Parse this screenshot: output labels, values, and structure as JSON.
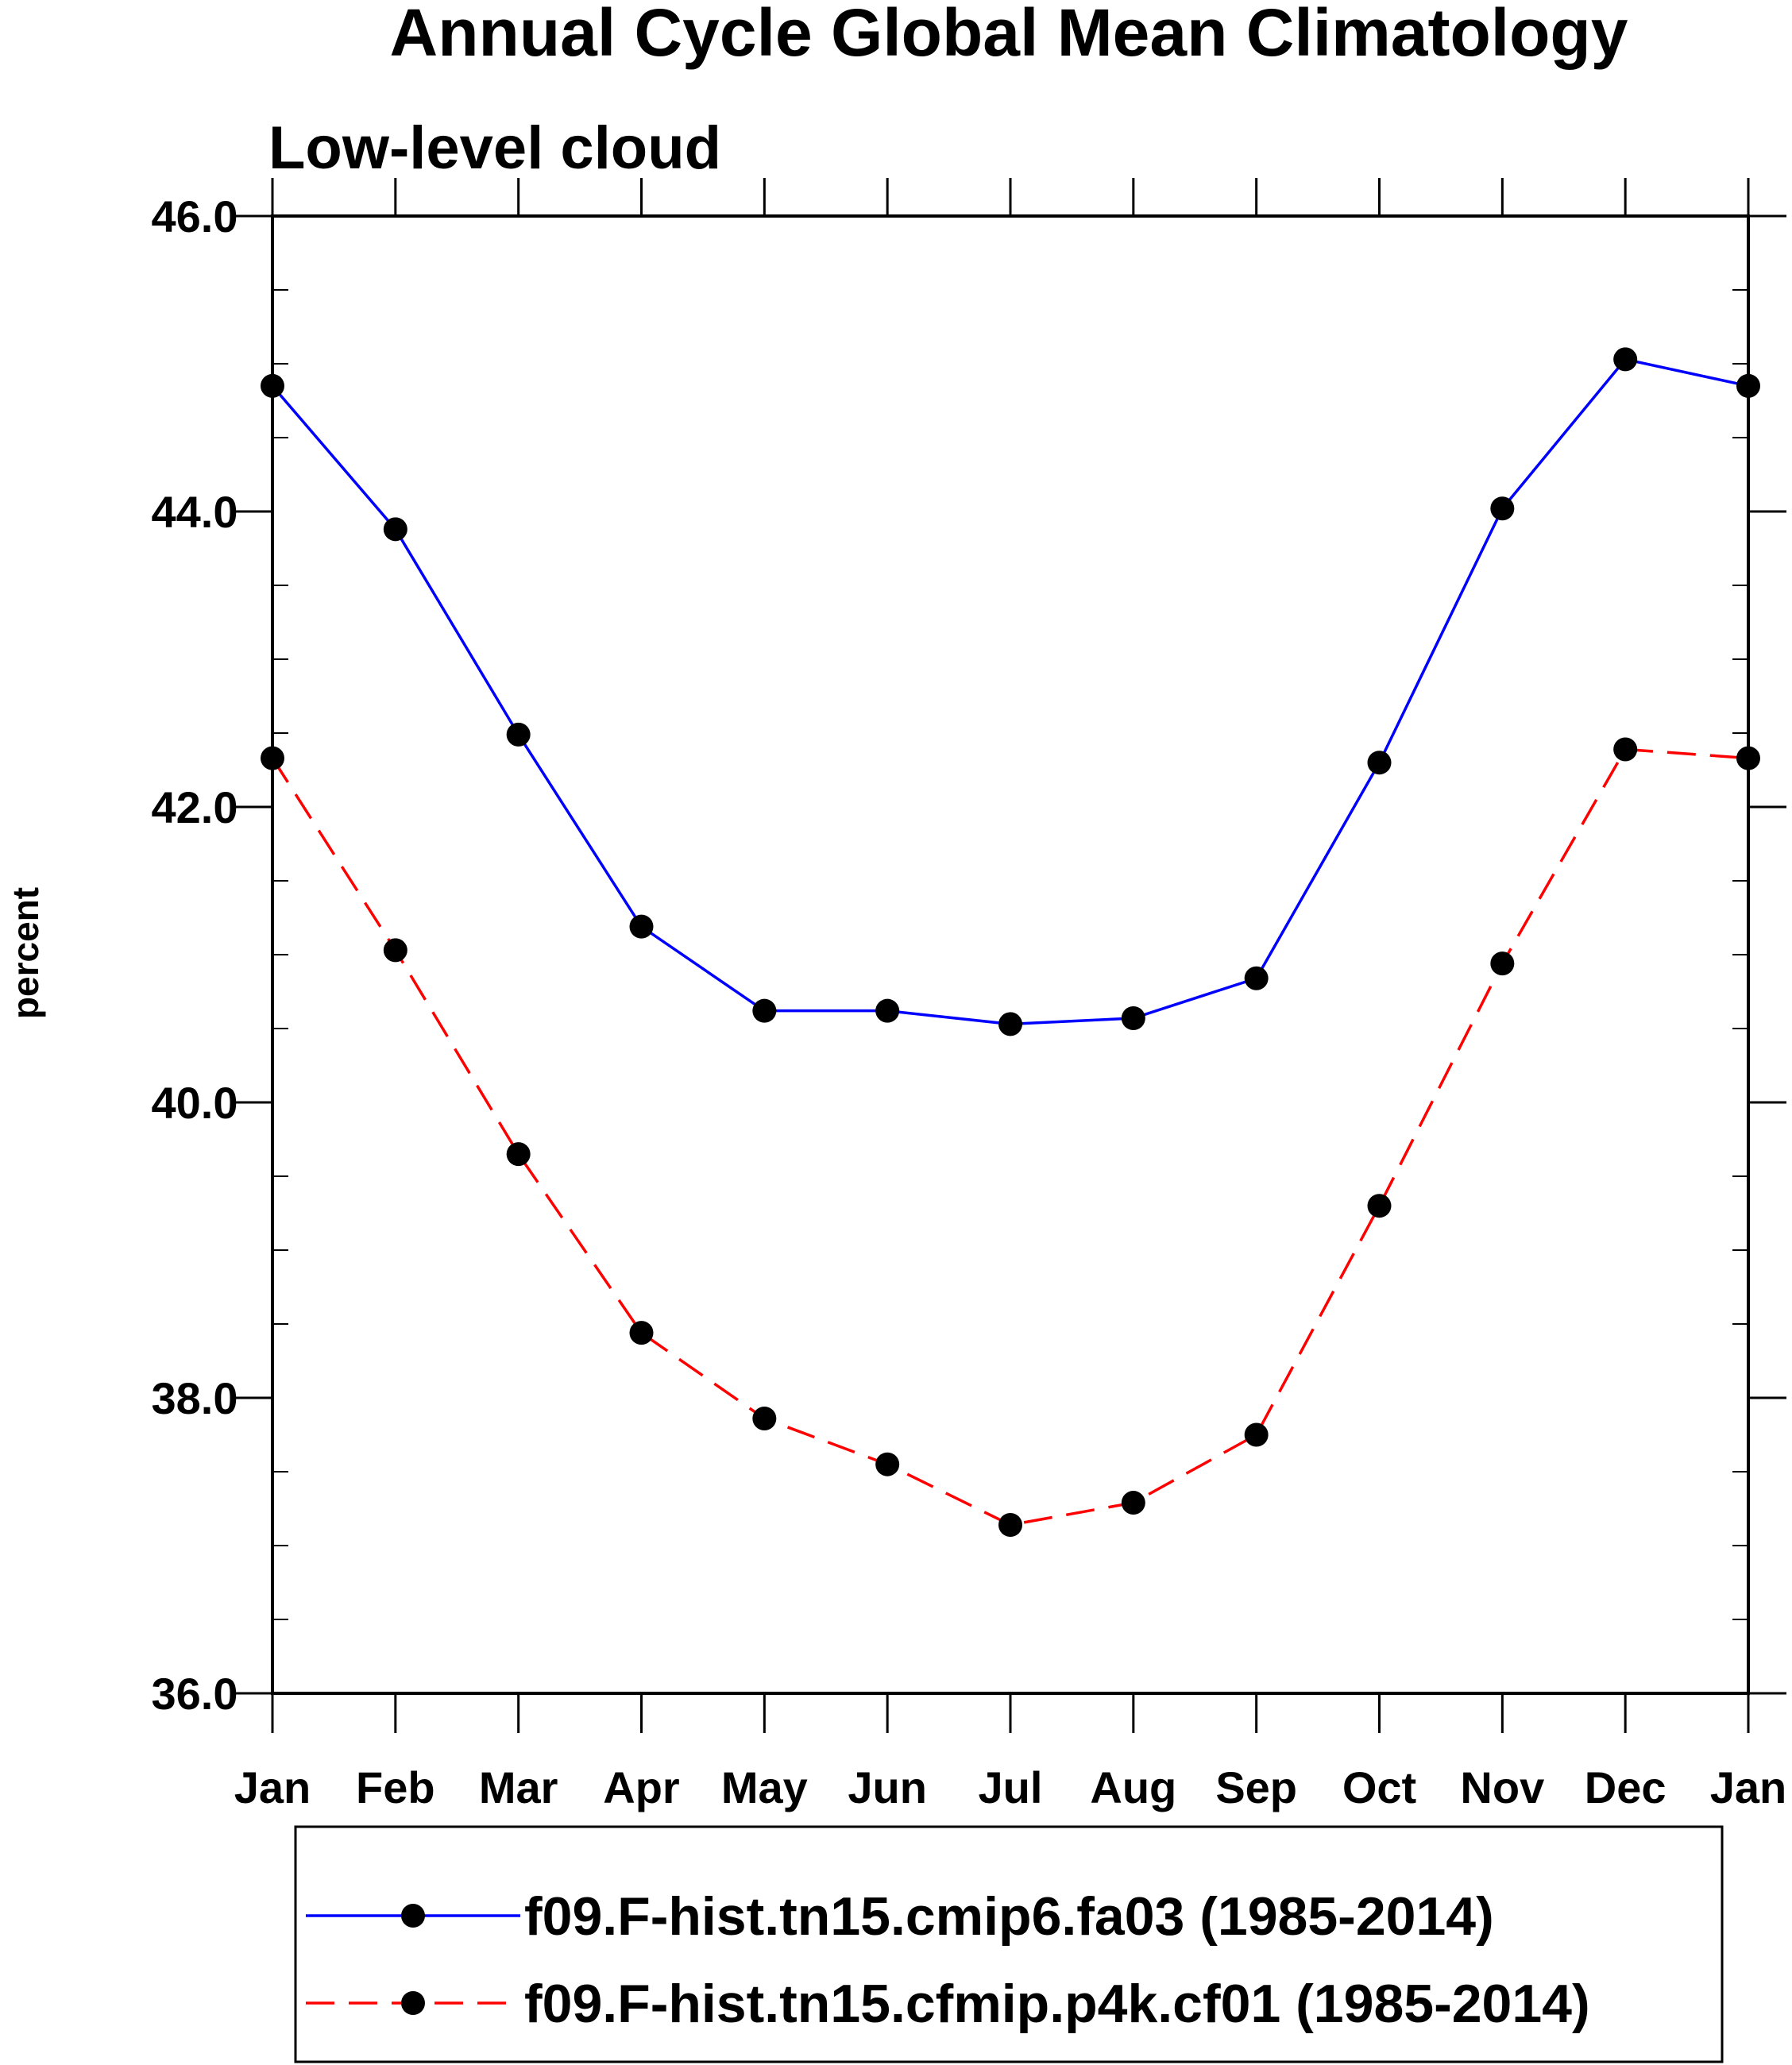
{
  "chart_data": {
    "type": "line",
    "title": "Annual Cycle Global Mean Climatology",
    "subtitle": "Low-level cloud",
    "ylabel": "percent",
    "xlabel": "",
    "ylim": [
      36.0,
      46.0
    ],
    "yticks": [
      "36.0",
      "38.0",
      "40.0",
      "42.0",
      "44.0",
      "46.0"
    ],
    "yticks_values": [
      36,
      38,
      40,
      42,
      44,
      46
    ],
    "y_minor_step": 0.5,
    "categories": [
      "Jan",
      "Feb",
      "Mar",
      "Apr",
      "May",
      "Jun",
      "Jul",
      "Aug",
      "Sep",
      "Oct",
      "Nov",
      "Dec",
      "Jan"
    ],
    "grid": false,
    "legend_position": "bottom",
    "series": [
      {
        "name": "f09.F-hist.tn15.cmip6.fa03 (1985-2014)",
        "color": "#0000ff",
        "dash": "solid",
        "marker": "filled-circle",
        "values": [
          44.85,
          43.88,
          42.49,
          41.19,
          40.62,
          40.62,
          40.53,
          40.57,
          40.84,
          42.3,
          44.02,
          45.03,
          44.85
        ]
      },
      {
        "name": "f09.F-hist.tn15.cfmip.p4k.cf01 (1985-2014)",
        "color": "#ff0000",
        "dash": "dashed",
        "marker": "filled-circle",
        "values": [
          42.33,
          41.03,
          39.65,
          38.44,
          37.86,
          37.55,
          37.14,
          37.29,
          37.75,
          39.3,
          40.94,
          42.39,
          42.33
        ]
      }
    ]
  }
}
